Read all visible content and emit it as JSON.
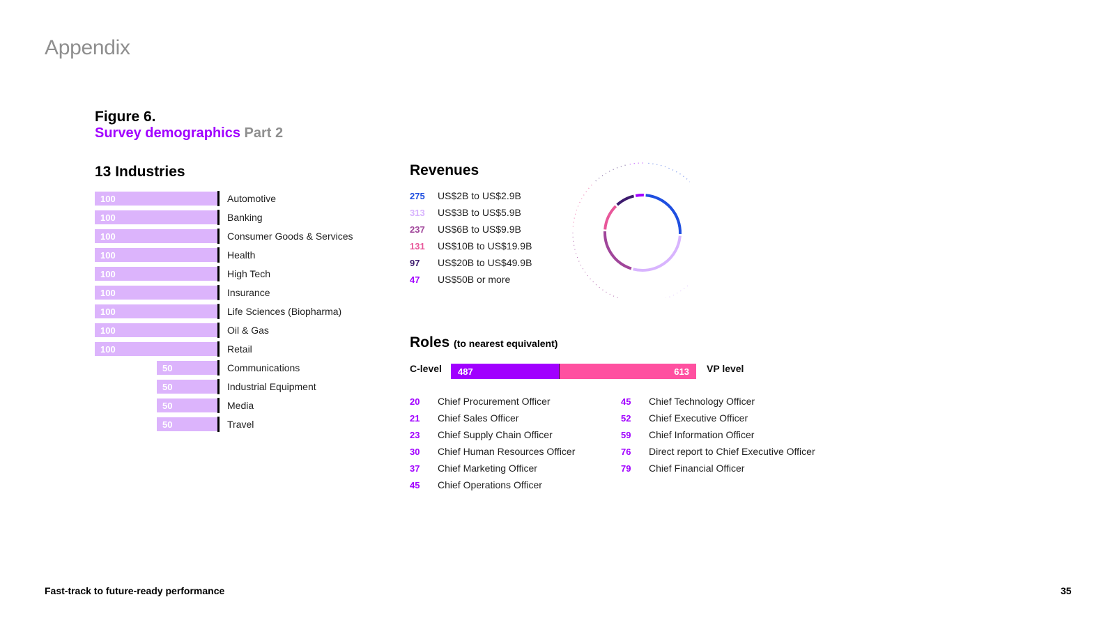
{
  "header": {
    "appendix": "Appendix"
  },
  "figure": {
    "label": "Figure 6.",
    "title_highlight": "Survey demographics",
    "title_rest": " Part 2"
  },
  "industries": {
    "title": "13 Industries"
  },
  "revenues": {
    "title": "Revenues",
    "items": [
      {
        "value": "275",
        "label": "US$2B to US$2.9B",
        "color": "#1f4fe0"
      },
      {
        "value": "313",
        "label": "US$3B to US$5.9B",
        "color": "#d8b4fe"
      },
      {
        "value": "237",
        "label": "US$6B to US$9.9B",
        "color": "#a0459a"
      },
      {
        "value": "131",
        "label": "US$10B to US$19.9B",
        "color": "#e8579a"
      },
      {
        "value": "97",
        "label": "US$20B to US$49.9B",
        "color": "#3d1a6e"
      },
      {
        "value": "47",
        "label": "US$50B or more",
        "color": "#a100ff"
      }
    ]
  },
  "roles": {
    "title": "Roles",
    "subtitle": "(to nearest equivalent)",
    "c_level_label": "C-level",
    "vp_level_label": "VP level",
    "c_level_value": "487",
    "vp_level_value": "613",
    "left_column": [
      {
        "value": "20",
        "label": "Chief Procurement Officer"
      },
      {
        "value": "21",
        "label": "Chief Sales Officer"
      },
      {
        "value": "23",
        "label": "Chief Supply Chain Officer"
      },
      {
        "value": "30",
        "label": "Chief Human Resources Officer"
      },
      {
        "value": "37",
        "label": "Chief Marketing Officer"
      },
      {
        "value": "45",
        "label": "Chief Operations Officer"
      }
    ],
    "right_column": [
      {
        "value": "45",
        "label": "Chief Technology Officer"
      },
      {
        "value": "52",
        "label": "Chief Executive Officer"
      },
      {
        "value": "59",
        "label": "Chief Information Officer"
      },
      {
        "value": "76",
        "label": "Direct report to Chief Executive Officer"
      },
      {
        "value": "79",
        "label": "Chief Financial Officer"
      }
    ]
  },
  "footer": {
    "text": "Fast-track to future-ready performance",
    "page": "35"
  },
  "colors": {
    "accent": "#a100ff",
    "bar_fill": "#dcb4fc",
    "pink": "#ff50a0"
  },
  "chart_data": [
    {
      "type": "bar",
      "title": "13 Industries",
      "orientation": "horizontal",
      "categories": [
        "Automotive",
        "Banking",
        "Consumer Goods & Services",
        "Health",
        "High Tech",
        "Insurance",
        "Life Sciences (Biopharma)",
        "Oil & Gas",
        "Retail",
        "Communications",
        "Industrial Equipment",
        "Media",
        "Travel"
      ],
      "values": [
        100,
        100,
        100,
        100,
        100,
        100,
        100,
        100,
        100,
        50,
        50,
        50,
        50
      ]
    },
    {
      "type": "pie",
      "title": "Revenues",
      "categories": [
        "US$2B to US$2.9B",
        "US$3B to US$5.9B",
        "US$6B to US$9.9B",
        "US$10B to US$19.9B",
        "US$20B to US$49.9B",
        "US$50B or more"
      ],
      "values": [
        275,
        313,
        237,
        131,
        97,
        47
      ]
    },
    {
      "type": "bar",
      "title": "Roles",
      "stacked": true,
      "categories": [
        "C-level",
        "VP level"
      ],
      "values": [
        487,
        613
      ]
    }
  ]
}
